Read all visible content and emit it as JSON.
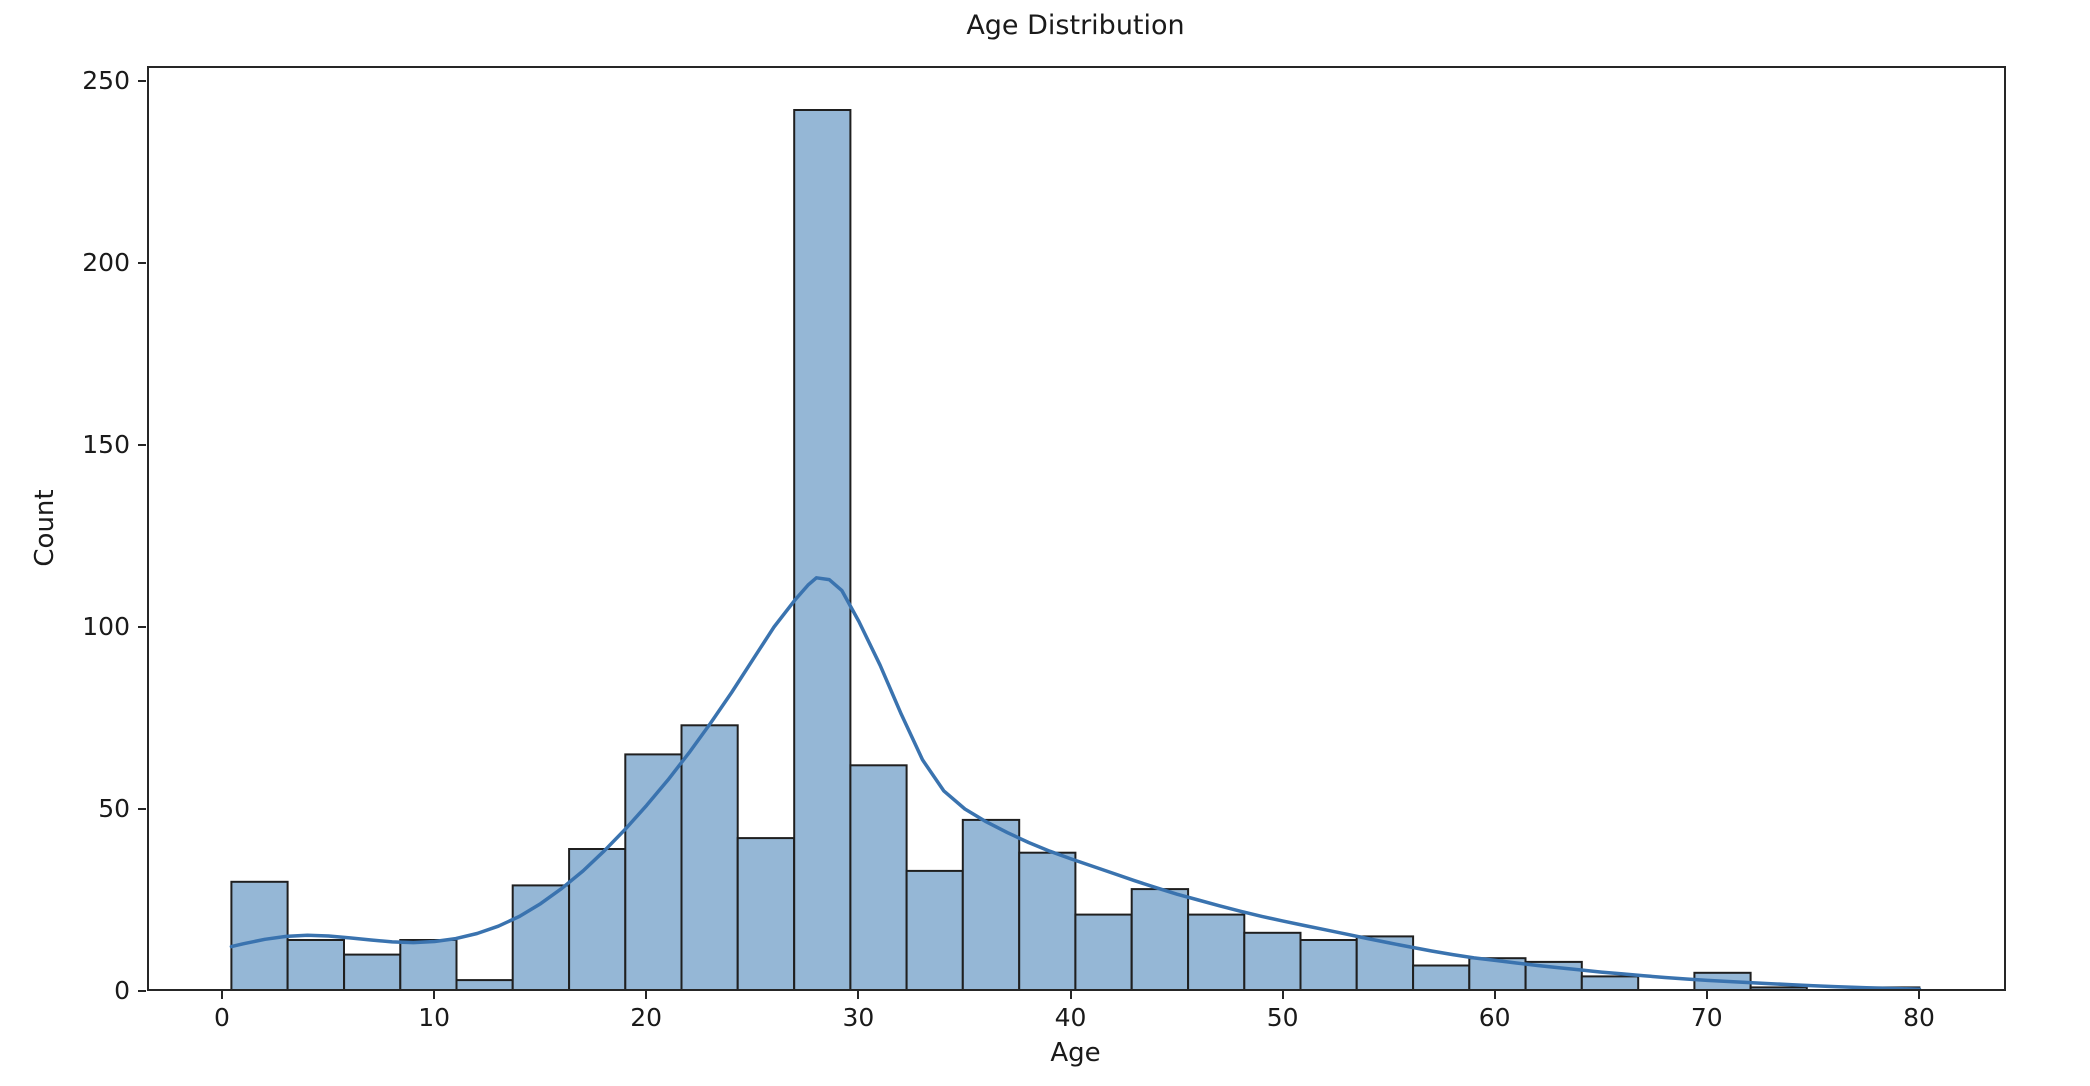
{
  "chart_data": {
    "type": "bar",
    "subtype": "histogram_with_kde",
    "title": "Age Distribution",
    "xlabel": "Age",
    "ylabel": "Count",
    "xticks": [
      0,
      10,
      20,
      30,
      40,
      50,
      60,
      70,
      80
    ],
    "yticks": [
      0,
      50,
      100,
      150,
      200,
      250
    ],
    "xlim": [
      -3.56,
      84.08
    ],
    "ylim": [
      0,
      254.1
    ],
    "grid": false,
    "legend": "none",
    "bin_edges": [
      0.42,
      3.07,
      5.73,
      8.38,
      11.03,
      13.68,
      16.34,
      18.99,
      21.64,
      24.29,
      26.95,
      29.6,
      32.25,
      34.9,
      37.56,
      40.21,
      42.86,
      45.52,
      48.17,
      50.82,
      53.47,
      56.13,
      58.78,
      61.43,
      64.08,
      66.74,
      69.39,
      72.04,
      74.69,
      77.35,
      80.0
    ],
    "counts": [
      30,
      14,
      10,
      14,
      3,
      29,
      39,
      65,
      73,
      42,
      242,
      62,
      33,
      47,
      38,
      21,
      28,
      21,
      16,
      14,
      15,
      7,
      9,
      8,
      4,
      0,
      5,
      1,
      0,
      1
    ],
    "kde_points": [
      [
        0.42,
        12.2
      ],
      [
        1,
        13.0
      ],
      [
        2,
        14.2
      ],
      [
        3,
        15.0
      ],
      [
        4,
        15.3
      ],
      [
        5,
        15.1
      ],
      [
        6,
        14.6
      ],
      [
        7,
        14.0
      ],
      [
        8,
        13.5
      ],
      [
        9,
        13.3
      ],
      [
        10,
        13.6
      ],
      [
        11,
        14.4
      ],
      [
        12,
        15.8
      ],
      [
        13,
        17.8
      ],
      [
        14,
        20.5
      ],
      [
        15,
        24.0
      ],
      [
        16,
        28.2
      ],
      [
        17,
        33.0
      ],
      [
        18,
        38.5
      ],
      [
        19,
        44.5
      ],
      [
        20,
        51.0
      ],
      [
        21,
        58.0
      ],
      [
        22,
        65.5
      ],
      [
        23,
        73.5
      ],
      [
        24,
        82.0
      ],
      [
        25,
        91.0
      ],
      [
        26,
        100.0
      ],
      [
        27,
        107.5
      ],
      [
        27.6,
        111.5
      ],
      [
        28,
        113.5
      ],
      [
        28.6,
        113.0
      ],
      [
        29.2,
        110.0
      ],
      [
        30,
        101.5
      ],
      [
        31,
        89.5
      ],
      [
        32,
        76.0
      ],
      [
        33,
        63.5
      ],
      [
        34,
        55.0
      ],
      [
        35,
        50.0
      ],
      [
        36,
        46.5
      ],
      [
        37,
        43.5
      ],
      [
        38,
        40.8
      ],
      [
        39,
        38.4
      ],
      [
        40,
        36.3
      ],
      [
        41,
        34.3
      ],
      [
        42,
        32.3
      ],
      [
        43,
        30.3
      ],
      [
        44,
        28.4
      ],
      [
        45,
        26.6
      ],
      [
        46,
        25.0
      ],
      [
        47,
        23.4
      ],
      [
        48,
        21.9
      ],
      [
        49,
        20.5
      ],
      [
        50,
        19.2
      ],
      [
        51,
        18.0
      ],
      [
        52,
        16.8
      ],
      [
        53,
        15.6
      ],
      [
        54,
        14.4
      ],
      [
        55,
        13.2
      ],
      [
        56,
        12.1
      ],
      [
        57,
        11.0
      ],
      [
        58,
        10.0
      ],
      [
        59,
        9.1
      ],
      [
        60,
        8.4
      ],
      [
        61,
        7.7
      ],
      [
        62,
        7.0
      ],
      [
        63,
        6.4
      ],
      [
        64,
        5.8
      ],
      [
        65,
        5.2
      ],
      [
        66,
        4.7
      ],
      [
        67,
        4.2
      ],
      [
        68,
        3.7
      ],
      [
        69,
        3.3
      ],
      [
        70,
        2.9
      ],
      [
        71,
        2.6
      ],
      [
        72,
        2.3
      ],
      [
        73,
        2.0
      ],
      [
        74,
        1.7
      ],
      [
        75,
        1.45
      ],
      [
        76,
        1.2
      ],
      [
        77,
        1.0
      ],
      [
        78,
        0.8
      ],
      [
        79,
        0.65
      ],
      [
        80,
        0.5
      ]
    ],
    "colors": {
      "bar_fill": "#95b7d6",
      "bar_edge": "#1f1f1f",
      "kde_line": "#3a73af",
      "axis": "#262626",
      "text": "#1a1a1a",
      "background": "#ffffff"
    }
  }
}
